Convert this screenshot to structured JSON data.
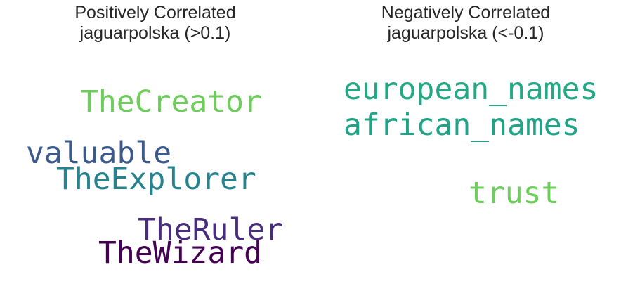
{
  "panels": [
    {
      "title_line1": "Positively Correlated",
      "title_line2": "jaguarpolska (>0.1)",
      "words": [
        {
          "text": "TheCreator",
          "color": "#6ccd5a"
        },
        {
          "text": "valuable",
          "color": "#3b5a8b"
        },
        {
          "text": "TheExplorer",
          "color": "#26838e"
        },
        {
          "text": "TheRuler",
          "color": "#472d7b"
        },
        {
          "text": "TheWizard",
          "color": "#440154"
        }
      ]
    },
    {
      "title_line1": "Negatively Correlated",
      "title_line2": "jaguarpolska (<-0.1)",
      "words": [
        {
          "text": "european_names",
          "color": "#22a884"
        },
        {
          "text": "african_names",
          "color": "#20a386"
        },
        {
          "text": "trust",
          "color": "#6ccd5a"
        }
      ]
    }
  ]
}
